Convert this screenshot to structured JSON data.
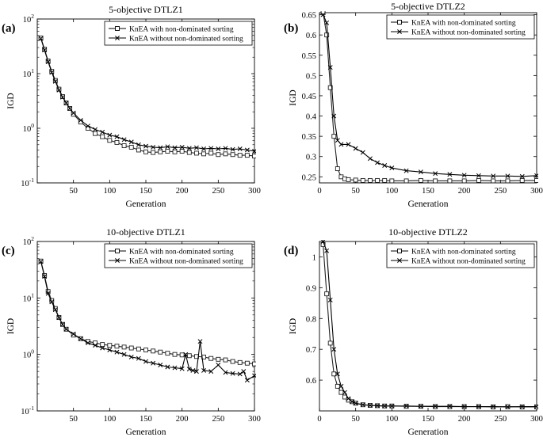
{
  "figure": {
    "legend_labels": [
      "KnEA with non-dominated sorting",
      "KnEA without non-dominated sorting"
    ]
  },
  "chart_data": [
    {
      "panel": "(a)",
      "type": "line",
      "title": "5-objective DTLZ1",
      "xlabel": "Generation",
      "ylabel": "IGD",
      "yscale": "log",
      "xlim": [
        0,
        300
      ],
      "ylim": [
        0.1,
        100
      ],
      "xticks": [
        50,
        100,
        150,
        200,
        250,
        300
      ],
      "yticks": [
        {
          "base": "10",
          "exp": "-1",
          "v": 0.1
        },
        {
          "base": "10",
          "exp": "0",
          "v": 1
        },
        {
          "base": "10",
          "exp": "1",
          "v": 10
        },
        {
          "base": "10",
          "exp": "2",
          "v": 100
        }
      ],
      "legend": "top-right",
      "series": [
        {
          "name": "KnEA with non-dominated sorting",
          "marker": "square",
          "x": [
            5,
            10,
            15,
            20,
            25,
            30,
            35,
            40,
            45,
            50,
            60,
            70,
            80,
            90,
            100,
            110,
            120,
            130,
            140,
            150,
            160,
            170,
            180,
            190,
            200,
            210,
            220,
            230,
            240,
            250,
            260,
            270,
            280,
            290,
            300
          ],
          "values": [
            45,
            28,
            17,
            11,
            7.5,
            5.2,
            3.8,
            2.9,
            2.3,
            1.8,
            1.3,
            1.0,
            0.8,
            0.7,
            0.6,
            0.55,
            0.48,
            0.45,
            0.4,
            0.37,
            0.36,
            0.37,
            0.38,
            0.37,
            0.38,
            0.36,
            0.35,
            0.34,
            0.35,
            0.33,
            0.34,
            0.33,
            0.32,
            0.32,
            0.31
          ]
        },
        {
          "name": "KnEA without non-dominated sorting",
          "marker": "x",
          "x": [
            5,
            10,
            15,
            20,
            25,
            30,
            35,
            40,
            45,
            50,
            60,
            70,
            80,
            90,
            100,
            110,
            120,
            130,
            140,
            150,
            160,
            170,
            180,
            190,
            200,
            210,
            220,
            230,
            240,
            250,
            260,
            270,
            280,
            290,
            300
          ],
          "values": [
            44,
            27,
            16.5,
            10.5,
            7.2,
            5.0,
            3.7,
            2.9,
            2.3,
            1.9,
            1.4,
            1.1,
            0.95,
            0.85,
            0.75,
            0.7,
            0.62,
            0.56,
            0.5,
            0.47,
            0.45,
            0.44,
            0.46,
            0.44,
            0.45,
            0.43,
            0.44,
            0.42,
            0.43,
            0.42,
            0.43,
            0.41,
            0.42,
            0.4,
            0.38
          ]
        }
      ]
    },
    {
      "panel": "(b)",
      "type": "line",
      "title": "5-objective DTLZ2",
      "xlabel": "Generation",
      "ylabel": "IGD",
      "yscale": "linear",
      "xlim": [
        0,
        300
      ],
      "ylim": [
        0.235,
        0.655
      ],
      "xticks": [
        0,
        50,
        100,
        150,
        200,
        250,
        300
      ],
      "yticks": [
        {
          "label": "0.25",
          "v": 0.25
        },
        {
          "label": "0.3",
          "v": 0.3
        },
        {
          "label": "0.35",
          "v": 0.35
        },
        {
          "label": "0.4",
          "v": 0.4
        },
        {
          "label": "0.45",
          "v": 0.45
        },
        {
          "label": "0.5",
          "v": 0.5
        },
        {
          "label": "0.55",
          "v": 0.55
        },
        {
          "label": "0.6",
          "v": 0.6
        },
        {
          "label": "0.65",
          "v": 0.65
        }
      ],
      "legend": "top-right",
      "series": [
        {
          "name": "KnEA with non-dominated sorting",
          "marker": "square",
          "x": [
            5,
            10,
            15,
            20,
            25,
            30,
            35,
            40,
            50,
            60,
            70,
            80,
            90,
            100,
            120,
            140,
            160,
            180,
            200,
            220,
            240,
            260,
            280,
            300
          ],
          "values": [
            0.655,
            0.6,
            0.47,
            0.35,
            0.27,
            0.25,
            0.245,
            0.243,
            0.242,
            0.241,
            0.241,
            0.241,
            0.241,
            0.24,
            0.24,
            0.241,
            0.24,
            0.24,
            0.24,
            0.241,
            0.24,
            0.24,
            0.241,
            0.241
          ]
        },
        {
          "name": "KnEA without non-dominated sorting",
          "marker": "x",
          "x": [
            5,
            10,
            15,
            20,
            25,
            30,
            40,
            50,
            60,
            70,
            80,
            90,
            100,
            120,
            140,
            160,
            180,
            200,
            220,
            240,
            260,
            280,
            300
          ],
          "values": [
            0.65,
            0.63,
            0.52,
            0.4,
            0.34,
            0.33,
            0.33,
            0.32,
            0.31,
            0.295,
            0.285,
            0.278,
            0.272,
            0.265,
            0.262,
            0.258,
            0.256,
            0.254,
            0.253,
            0.252,
            0.252,
            0.251,
            0.253
          ]
        }
      ]
    },
    {
      "panel": "(c)",
      "type": "line",
      "title": "10-objective DTLZ1",
      "xlabel": "Generation",
      "ylabel": "IGD",
      "yscale": "log",
      "xlim": [
        0,
        300
      ],
      "ylim": [
        0.1,
        100
      ],
      "xticks": [
        50,
        100,
        150,
        200,
        250,
        300
      ],
      "yticks": [
        {
          "base": "10",
          "exp": "-1",
          "v": 0.1
        },
        {
          "base": "10",
          "exp": "0",
          "v": 1
        },
        {
          "base": "10",
          "exp": "1",
          "v": 10
        },
        {
          "base": "10",
          "exp": "2",
          "v": 100
        }
      ],
      "legend": "top-right",
      "series": [
        {
          "name": "KnEA with non-dominated sorting",
          "marker": "square",
          "x": [
            5,
            10,
            15,
            20,
            25,
            30,
            35,
            40,
            50,
            60,
            70,
            80,
            90,
            100,
            110,
            120,
            130,
            140,
            150,
            160,
            170,
            180,
            190,
            200,
            210,
            220,
            230,
            240,
            250,
            260,
            270,
            280,
            290,
            300
          ],
          "values": [
            45,
            25,
            13,
            9,
            6.5,
            4.5,
            3.4,
            2.8,
            2.2,
            1.9,
            1.7,
            1.6,
            1.5,
            1.45,
            1.4,
            1.35,
            1.3,
            1.25,
            1.2,
            1.15,
            1.1,
            1.05,
            1.0,
            0.98,
            0.95,
            0.92,
            0.9,
            0.85,
            0.82,
            0.8,
            0.75,
            0.72,
            0.7,
            0.68
          ]
        },
        {
          "name": "KnEA without non-dominated sorting",
          "marker": "x",
          "x": [
            5,
            10,
            15,
            20,
            25,
            30,
            35,
            40,
            50,
            60,
            70,
            80,
            90,
            100,
            110,
            120,
            130,
            140,
            150,
            160,
            170,
            180,
            190,
            200,
            205,
            210,
            215,
            220,
            225,
            230,
            240,
            250,
            260,
            270,
            280,
            285,
            290,
            300
          ],
          "values": [
            44,
            24,
            12,
            8.5,
            6.2,
            4.5,
            3.4,
            2.8,
            2.3,
            1.9,
            1.6,
            1.45,
            1.3,
            1.2,
            1.1,
            1.0,
            0.9,
            0.85,
            0.75,
            0.7,
            0.65,
            0.6,
            0.58,
            0.56,
            1.0,
            0.55,
            0.52,
            0.5,
            1.7,
            0.52,
            0.5,
            0.65,
            0.48,
            0.46,
            0.45,
            0.5,
            0.35,
            0.42
          ]
        }
      ]
    },
    {
      "panel": "(d)",
      "type": "line",
      "title": "10-objective DTLZ2",
      "xlabel": "Generation",
      "ylabel": "IGD",
      "yscale": "linear",
      "xlim": [
        0,
        300
      ],
      "ylim": [
        0.5,
        1.05
      ],
      "xticks": [
        0,
        50,
        100,
        150,
        200,
        250,
        300
      ],
      "yticks": [
        {
          "label": "0.6",
          "v": 0.6
        },
        {
          "label": "0.7",
          "v": 0.7
        },
        {
          "label": "0.8",
          "v": 0.8
        },
        {
          "label": "0.9",
          "v": 0.9
        },
        {
          "label": "1",
          "v": 1.0
        }
      ],
      "legend": "top-right",
      "series": [
        {
          "name": "KnEA with non-dominated sorting",
          "marker": "square",
          "x": [
            5,
            10,
            15,
            20,
            25,
            30,
            35,
            40,
            45,
            50,
            60,
            70,
            80,
            90,
            100,
            120,
            140,
            160,
            180,
            200,
            220,
            240,
            260,
            280,
            300
          ],
          "values": [
            1.04,
            0.88,
            0.72,
            0.62,
            0.58,
            0.56,
            0.545,
            0.535,
            0.53,
            0.525,
            0.52,
            0.518,
            0.517,
            0.516,
            0.516,
            0.515,
            0.515,
            0.514,
            0.514,
            0.514,
            0.514,
            0.513,
            0.514,
            0.513,
            0.513
          ]
        },
        {
          "name": "KnEA without non-dominated sorting",
          "marker": "x",
          "x": [
            5,
            10,
            15,
            20,
            25,
            30,
            35,
            40,
            45,
            50,
            60,
            70,
            80,
            90,
            100,
            120,
            140,
            160,
            180,
            200,
            220,
            240,
            260,
            280,
            300
          ],
          "values": [
            1.05,
            1.02,
            0.86,
            0.7,
            0.62,
            0.58,
            0.56,
            0.54,
            0.53,
            0.525,
            0.52,
            0.518,
            0.517,
            0.516,
            0.516,
            0.516,
            0.515,
            0.515,
            0.515,
            0.514,
            0.514,
            0.514,
            0.513,
            0.514,
            0.514
          ]
        }
      ]
    }
  ]
}
